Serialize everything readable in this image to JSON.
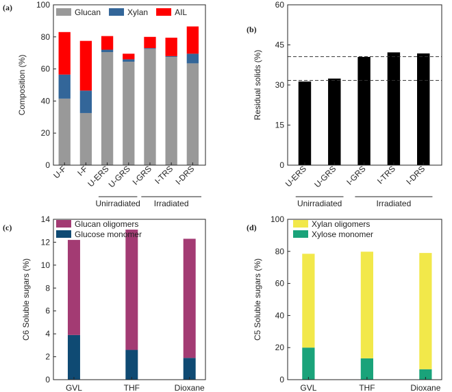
{
  "chart_data": [
    {
      "panel": "(a)",
      "type": "bar",
      "stacked": true,
      "categories": [
        "U-F",
        "I-F",
        "U-ERS",
        "U-GRS",
        "I-GRS",
        "I-TRS",
        "I-DRS"
      ],
      "series": [
        {
          "name": "Glucan",
          "color": "#999999",
          "values": [
            41.5,
            32.5,
            70.5,
            64.5,
            72.5,
            67.5,
            63.5
          ]
        },
        {
          "name": "Xylan",
          "color": "#336699",
          "values": [
            15.0,
            14.0,
            1.5,
            1.5,
            0.5,
            0.5,
            6.0
          ]
        },
        {
          "name": "AIL",
          "color": "#ff0000",
          "values": [
            26.5,
            31.0,
            8.5,
            3.5,
            7.0,
            11.5,
            17.0
          ]
        }
      ],
      "ylabel": "Composition (%)",
      "ylim": [
        0,
        100
      ],
      "yticks": [
        "0",
        "20",
        "40",
        "60",
        "80",
        "100"
      ],
      "groups": [
        {
          "label": "Unirradiated",
          "from": 2,
          "to": 3
        },
        {
          "label": "Irradiated",
          "from": 4,
          "to": 6
        }
      ],
      "legend": "top"
    },
    {
      "panel": "(b)",
      "type": "bar",
      "categories": [
        "U-ERS",
        "U-GRS",
        "I-GRS",
        "I-TRS",
        "I-DRS"
      ],
      "values": [
        31.3,
        32.4,
        40.5,
        42.2,
        41.8
      ],
      "color": "#000000",
      "ylabel": "Residual solids (%)",
      "ylim": [
        0,
        60
      ],
      "yticks": [
        "0",
        "15",
        "30",
        "45",
        "60"
      ],
      "reference_lines": [
        31.7,
        40.6
      ],
      "groups": [
        {
          "label": "Unirradiated",
          "from": 0,
          "to": 1
        },
        {
          "label": "Irradiated",
          "from": 2,
          "to": 4
        }
      ]
    },
    {
      "panel": "(c)",
      "type": "bar",
      "stacked": true,
      "categories": [
        "GVL",
        "THF",
        "Dioxane"
      ],
      "series": [
        {
          "name": "Glucose monomer",
          "color": "#0f4a73",
          "values": [
            3.9,
            2.6,
            1.9
          ]
        },
        {
          "name": "Glucan oligomers",
          "color": "#a33b73",
          "values": [
            8.3,
            10.5,
            10.4
          ]
        }
      ],
      "ylabel": "C6 Soluble sugars (%)",
      "ylim": [
        0,
        14
      ],
      "yticks": [
        "0",
        "2",
        "4",
        "6",
        "8",
        "10",
        "12",
        "14"
      ],
      "legend": "top-left"
    },
    {
      "panel": "(d)",
      "type": "bar",
      "stacked": true,
      "categories": [
        "GVL",
        "THF",
        "Dioxane"
      ],
      "series": [
        {
          "name": "Xylose monomer",
          "color": "#1aa37a",
          "values": [
            20.0,
            13.3,
            6.5
          ]
        },
        {
          "name": "Xylan oligomers",
          "color": "#f2e84a",
          "values": [
            58.5,
            66.5,
            72.5
          ]
        }
      ],
      "ylabel": "C5 Soluble sugars (%)",
      "ylim": [
        0,
        100
      ],
      "yticks": [
        "0",
        "20",
        "40",
        "60",
        "80",
        "100"
      ],
      "legend": "top-left"
    }
  ]
}
